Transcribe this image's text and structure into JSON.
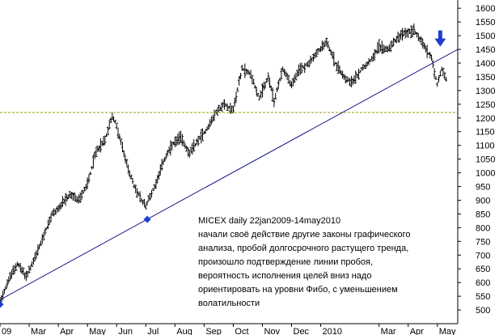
{
  "chart_data": {
    "type": "bar",
    "style": "ohlc",
    "title": "",
    "xlabel": "",
    "ylabel": "",
    "ylim": [
      450,
      1630
    ],
    "grid": false,
    "y_ticks": [
      500,
      550,
      600,
      650,
      700,
      750,
      800,
      850,
      900,
      950,
      1000,
      1050,
      1100,
      1150,
      1200,
      1250,
      1300,
      1350,
      1400,
      1450,
      1500,
      1550,
      1600
    ],
    "x_ticks": [
      {
        "label": "09",
        "month": 0
      },
      {
        "label": "Mar",
        "month": 1
      },
      {
        "label": "Apr",
        "month": 2
      },
      {
        "label": "May",
        "month": 3
      },
      {
        "label": "Jun",
        "month": 4
      },
      {
        "label": "Jul",
        "month": 5
      },
      {
        "label": "Aug",
        "month": 6
      },
      {
        "label": "Sep",
        "month": 7
      },
      {
        "label": "Oct",
        "month": 8
      },
      {
        "label": "Nov",
        "month": 9
      },
      {
        "label": "Dec",
        "month": 10
      },
      {
        "label": "2010",
        "month": 11
      },
      {
        "label": "Mar",
        "month": 13
      },
      {
        "label": "Apr",
        "month": 14
      },
      {
        "label": "May",
        "month": 15
      }
    ],
    "x_range": [
      0,
      15.7
    ],
    "price_path": [
      [
        0.0,
        530
      ],
      [
        0.3,
        610
      ],
      [
        0.6,
        670
      ],
      [
        0.9,
        620
      ],
      [
        1.2,
        690
      ],
      [
        1.5,
        770
      ],
      [
        1.8,
        850
      ],
      [
        2.1,
        880
      ],
      [
        2.4,
        920
      ],
      [
        2.7,
        900
      ],
      [
        3.0,
        960
      ],
      [
        3.3,
        1080
      ],
      [
        3.6,
        1120
      ],
      [
        3.85,
        1210
      ],
      [
        4.0,
        1170
      ],
      [
        4.3,
        1050
      ],
      [
        4.6,
        950
      ],
      [
        4.85,
        900
      ],
      [
        5.0,
        880
      ],
      [
        5.3,
        950
      ],
      [
        5.6,
        1040
      ],
      [
        5.9,
        1100
      ],
      [
        6.2,
        1130
      ],
      [
        6.5,
        1070
      ],
      [
        6.8,
        1120
      ],
      [
        7.1,
        1160
      ],
      [
        7.4,
        1220
      ],
      [
        7.7,
        1250
      ],
      [
        8.0,
        1230
      ],
      [
        8.3,
        1380
      ],
      [
        8.6,
        1360
      ],
      [
        8.9,
        1270
      ],
      [
        9.2,
        1350
      ],
      [
        9.4,
        1260
      ],
      [
        9.7,
        1380
      ],
      [
        10.0,
        1320
      ],
      [
        10.3,
        1380
      ],
      [
        10.6,
        1400
      ],
      [
        10.9,
        1440
      ],
      [
        11.2,
        1480
      ],
      [
        11.5,
        1400
      ],
      [
        11.8,
        1350
      ],
      [
        12.1,
        1330
      ],
      [
        12.4,
        1380
      ],
      [
        12.7,
        1410
      ],
      [
        13.0,
        1460
      ],
      [
        13.3,
        1450
      ],
      [
        13.6,
        1490
      ],
      [
        13.9,
        1510
      ],
      [
        14.2,
        1520
      ],
      [
        14.4,
        1490
      ],
      [
        14.6,
        1450
      ],
      [
        14.8,
        1420
      ],
      [
        15.0,
        1320
      ],
      [
        15.15,
        1380
      ],
      [
        15.3,
        1340
      ]
    ],
    "trendline": {
      "from": [
        0.0,
        537
      ],
      "to": [
        15.7,
        1450
      ]
    },
    "support_line": {
      "y": 1220,
      "color": "#9a9a00"
    },
    "markers": [
      {
        "type": "diamond",
        "x": 0.0,
        "y": 520,
        "color": "#1f3fd0"
      },
      {
        "type": "diamond",
        "x": 5.05,
        "y": 830,
        "color": "#1f3fd0"
      },
      {
        "type": "arrow-down",
        "x": 15.1,
        "y": 1460,
        "color": "#1f3fd0"
      }
    ],
    "colors": {
      "bars": "#000000",
      "trendline": "#1a1a8c",
      "support": "#9a9a00",
      "axis": "#000000"
    },
    "annotation": {
      "lines": [
        "MICEX daily 22jan2009-14may2010",
        "начали своё действие другие законы графического",
        "анализа, пробой долгосрочного растущего тренда,",
        "произошло подтверждение линии пробоя,",
        "вероятность исполнения целей вниз надо",
        "ориентировать на уровни Фибо, с уменьшением",
        "волатильности"
      ]
    }
  }
}
